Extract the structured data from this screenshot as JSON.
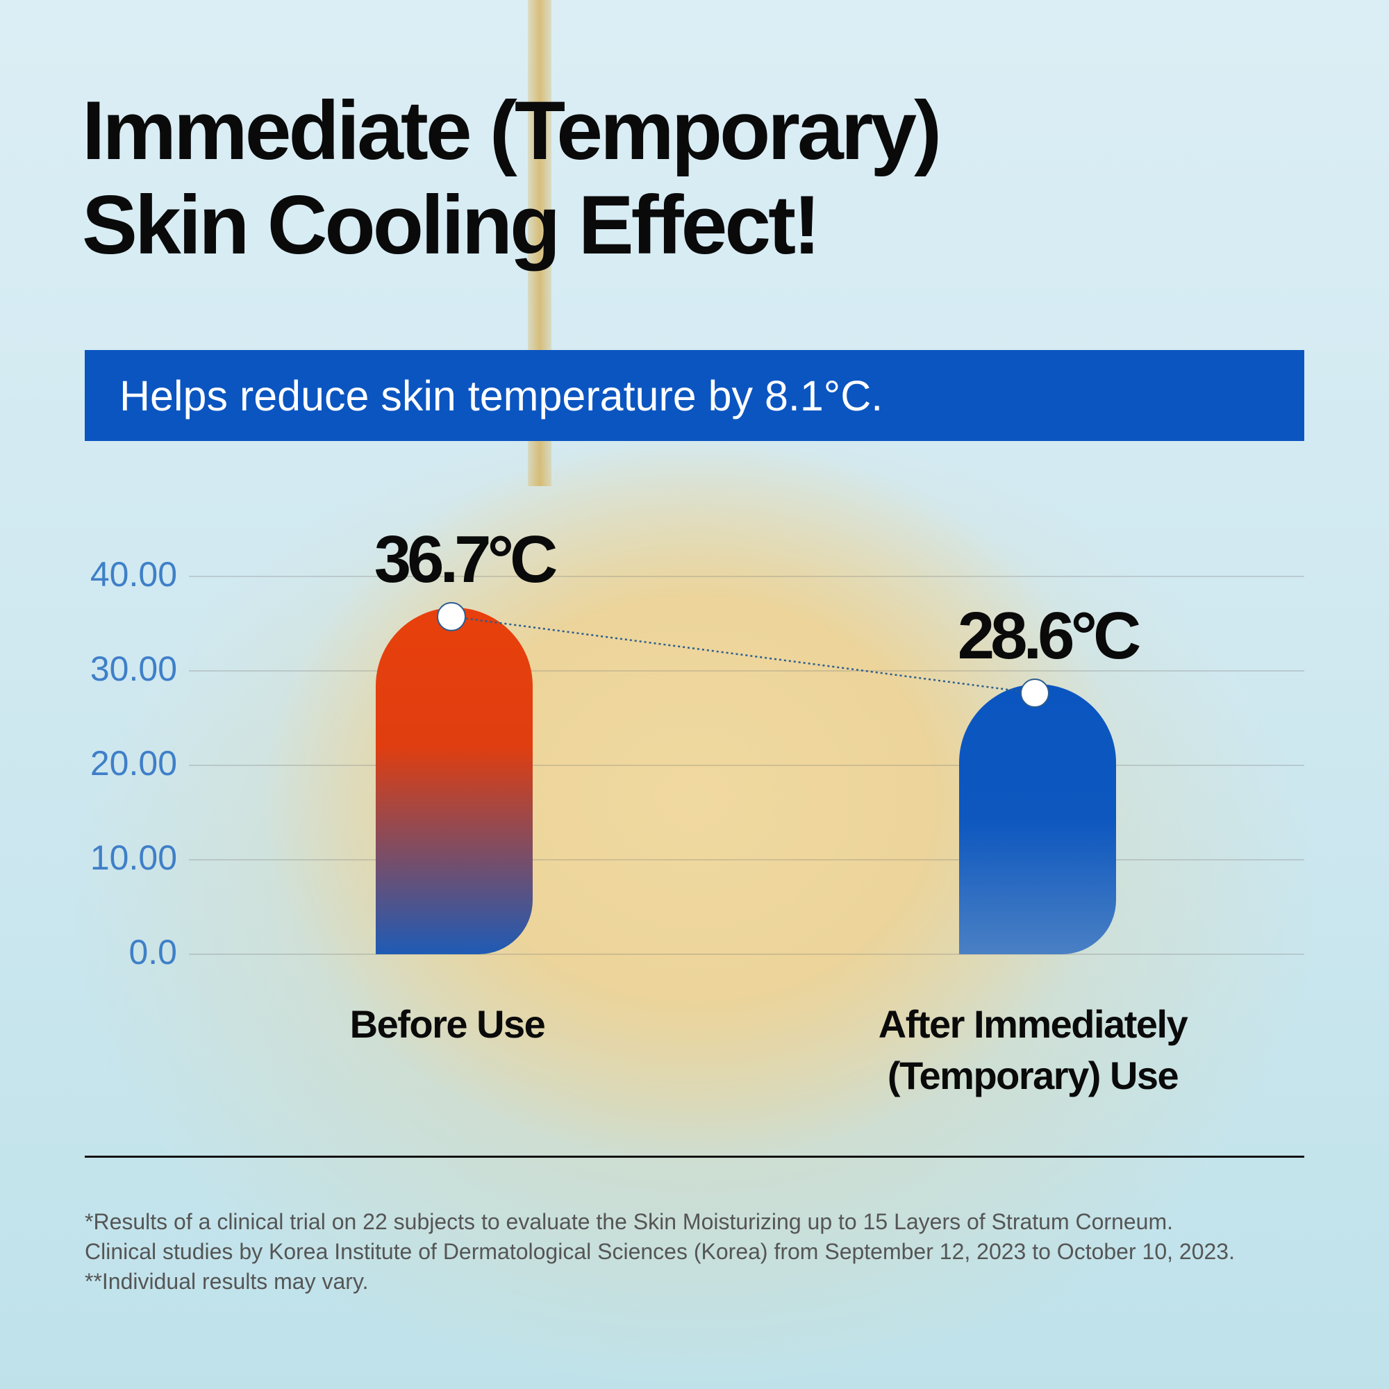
{
  "title_lines": [
    "Immediate (Temporary)",
    "Skin Cooling Effect!"
  ],
  "banner": "Helps reduce skin temperature by 8.1°C.",
  "chart_data": {
    "type": "bar",
    "categories": [
      "Before Use",
      "After Immediately (Temporary) Use"
    ],
    "category_lines": [
      [
        "Before Use"
      ],
      [
        "After Immediately",
        "(Temporary) Use"
      ]
    ],
    "values": [
      36.7,
      28.6
    ],
    "value_labels": [
      "36.7°C",
      "28.6°C"
    ],
    "unit": "°C",
    "ylim": [
      0,
      40
    ],
    "yticks": [
      0,
      10,
      20,
      30,
      40
    ],
    "ytick_labels": [
      "0.0",
      "10.00",
      "20.00",
      "30.00",
      "40.00"
    ],
    "grid": true,
    "colors": {
      "before_top": "#e8400c",
      "before_bottom": "#1f5bb5",
      "after_top": "#0b55c1",
      "after_bottom": "#3f7ac4",
      "tick": "#3f7fc8"
    }
  },
  "footnotes": [
    "*Results of a clinical trial on 22 subjects to evaluate the Skin Moisturizing up to 15 Layers of Stratum Corneum.",
    "Clinical studies by Korea Institute of Dermatological Sciences (Korea) from September 12, 2023 to October 10, 2023.",
    "**Individual results may vary."
  ]
}
